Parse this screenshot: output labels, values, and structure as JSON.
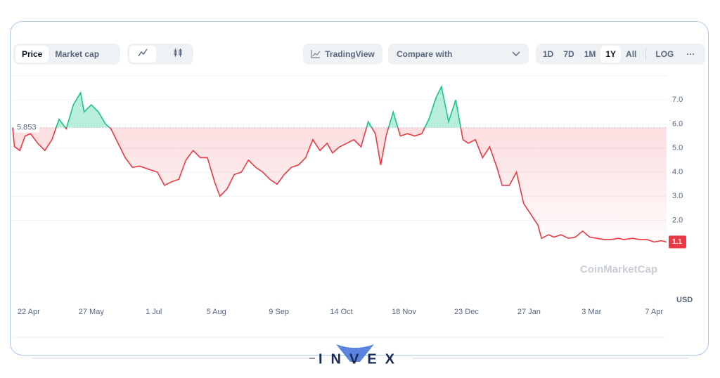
{
  "toolbar": {
    "tabs": [
      "Price",
      "Market cap"
    ],
    "tradingview": "TradingView",
    "compare": "Compare with",
    "ranges": [
      "1D",
      "7D",
      "1M",
      "1Y",
      "All",
      "LOG"
    ],
    "active_range": "1Y",
    "more": "···"
  },
  "chart_data": {
    "type": "line",
    "x": [
      -9,
      -8,
      -5,
      -2,
      1,
      5,
      9,
      13,
      17,
      21,
      25,
      29,
      31,
      35,
      39,
      43,
      46,
      50,
      54,
      58,
      62,
      68,
      72,
      76,
      80,
      84,
      88,
      92,
      96,
      100,
      104,
      107,
      111,
      115,
      119,
      123,
      127,
      131,
      135,
      139,
      143,
      147,
      151,
      155,
      159,
      163,
      167,
      170,
      174,
      178,
      182,
      186,
      190,
      194,
      197,
      200,
      204,
      208,
      212,
      216,
      220,
      224,
      228,
      231,
      235,
      239,
      243,
      246,
      250,
      254,
      258,
      262,
      265,
      269,
      273,
      277,
      281,
      285,
      287,
      291,
      294,
      298,
      302,
      306,
      310,
      314,
      318,
      322,
      326,
      330,
      333,
      338,
      342,
      346,
      350,
      354,
      357
    ],
    "values": [
      5.85,
      5.06,
      4.9,
      5.5,
      5.6,
      5.2,
      4.9,
      5.35,
      6.2,
      5.8,
      6.8,
      7.3,
      6.5,
      6.8,
      6.5,
      6.0,
      5.8,
      5.2,
      4.6,
      4.2,
      4.25,
      4.1,
      4.0,
      3.45,
      3.6,
      3.7,
      4.5,
      4.9,
      4.6,
      4.6,
      3.6,
      3.0,
      3.3,
      3.9,
      4.0,
      4.5,
      4.2,
      4.0,
      3.7,
      3.5,
      3.9,
      4.2,
      4.3,
      4.6,
      5.35,
      4.9,
      5.2,
      4.8,
      5.05,
      5.2,
      5.35,
      5.05,
      6.1,
      5.6,
      4.3,
      5.5,
      6.5,
      5.5,
      5.6,
      5.5,
      5.6,
      6.2,
      7.1,
      7.55,
      6.1,
      7.0,
      5.35,
      5.2,
      5.35,
      4.6,
      5.05,
      4.2,
      3.45,
      3.45,
      4.0,
      2.7,
      2.25,
      1.8,
      1.25,
      1.4,
      1.3,
      1.4,
      1.25,
      1.3,
      1.55,
      1.3,
      1.25,
      1.2,
      1.2,
      1.25,
      1.2,
      1.25,
      1.2,
      1.2,
      1.1,
      1.15,
      1.1
    ],
    "baseline": {
      "value": 5.853,
      "label": "5.853"
    },
    "current_price": 1.1,
    "up_color": "#16c784",
    "down_color": "#ea3943",
    "xlim": [
      -9,
      357
    ],
    "xticks": [
      {
        "value": 0,
        "label": "22 Apr"
      },
      {
        "value": 35,
        "label": "27 May"
      },
      {
        "value": 70,
        "label": "1 Jul"
      },
      {
        "value": 105,
        "label": "5 Aug"
      },
      {
        "value": 140,
        "label": "9 Sep"
      },
      {
        "value": 175,
        "label": "14 Oct"
      },
      {
        "value": 210,
        "label": "18 Nov"
      },
      {
        "value": 245,
        "label": "23 Dec"
      },
      {
        "value": 280,
        "label": "27 Jan"
      },
      {
        "value": 315,
        "label": "3 Mar"
      },
      {
        "value": 350,
        "label": "7 Apr"
      }
    ],
    "ylim": [
      -1.4,
      8.0
    ],
    "yticks": [
      {
        "value": 2,
        "label": "2.0"
      },
      {
        "value": 3,
        "label": "3.0"
      },
      {
        "value": 4,
        "label": "4.0"
      },
      {
        "value": 5,
        "label": "5.0"
      },
      {
        "value": 6,
        "label": "6.0"
      },
      {
        "value": 7,
        "label": "7.0"
      }
    ],
    "grid": true,
    "y_unit": "USD",
    "watermark": "CoinMarketCap"
  },
  "brand": "INVEX"
}
